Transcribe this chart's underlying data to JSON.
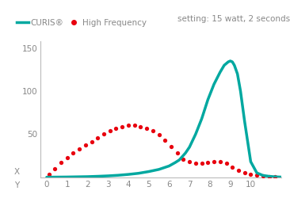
{
  "legend_curis": "CURIS®",
  "legend_hf": "High Frequency",
  "setting_text": "setting: 15 watt, 2 seconds",
  "label_x": "X",
  "label_y": "Y",
  "curis_color": "#00a8a0",
  "hf_color": "#e8000e",
  "bg_color": "#ffffff",
  "axis_color": "#bbbbbb",
  "text_color": "#888888",
  "legend_curis_color": "#00a8a0",
  "legend_hf_color": "#e8000e",
  "ylim": [
    0,
    158
  ],
  "xlim": [
    -0.3,
    11.5
  ],
  "yticks": [
    0,
    50,
    100,
    150
  ],
  "xticks": [
    0,
    1,
    2,
    3,
    4,
    5,
    6,
    7,
    8,
    9,
    10
  ],
  "curis_x": [
    0,
    0.3,
    0.6,
    1.0,
    1.5,
    2.0,
    2.5,
    3.0,
    3.5,
    4.0,
    4.5,
    5.0,
    5.5,
    6.0,
    6.3,
    6.5,
    6.8,
    7.0,
    7.3,
    7.6,
    7.9,
    8.2,
    8.5,
    8.7,
    8.9,
    9.0,
    9.1,
    9.2,
    9.35,
    9.5,
    9.7,
    10.0,
    10.3,
    10.6,
    10.9,
    11.2,
    11.5
  ],
  "curis_y": [
    0,
    0.05,
    0.1,
    0.2,
    0.4,
    0.6,
    1.0,
    1.5,
    2.2,
    3.2,
    4.5,
    6.5,
    9.0,
    13.0,
    17.0,
    20.0,
    28.0,
    35.0,
    50.0,
    68.0,
    90.0,
    108.0,
    122.0,
    130.0,
    134.0,
    135.0,
    134.0,
    130.0,
    120.0,
    100.0,
    65.0,
    18.0,
    5.0,
    2.0,
    1.0,
    0.4,
    0.1
  ],
  "hf_x": [
    0.1,
    0.4,
    0.7,
    1.0,
    1.3,
    1.6,
    1.9,
    2.2,
    2.5,
    2.8,
    3.1,
    3.4,
    3.7,
    4.0,
    4.3,
    4.6,
    4.9,
    5.2,
    5.5,
    5.8,
    6.1,
    6.4,
    6.7,
    7.0,
    7.3,
    7.6,
    7.9,
    8.2,
    8.5,
    8.8,
    9.1,
    9.4,
    9.7,
    10.0,
    10.3,
    10.6,
    10.9,
    11.2
  ],
  "hf_y": [
    3,
    10,
    17,
    23,
    28,
    33,
    37,
    41,
    46,
    50,
    54,
    57,
    59,
    60,
    60,
    59,
    57,
    54,
    49,
    43,
    36,
    28,
    21,
    18,
    16,
    16,
    17,
    18,
    18,
    16,
    12,
    8,
    5,
    3.5,
    2.5,
    1.5,
    1.0,
    0.5
  ]
}
